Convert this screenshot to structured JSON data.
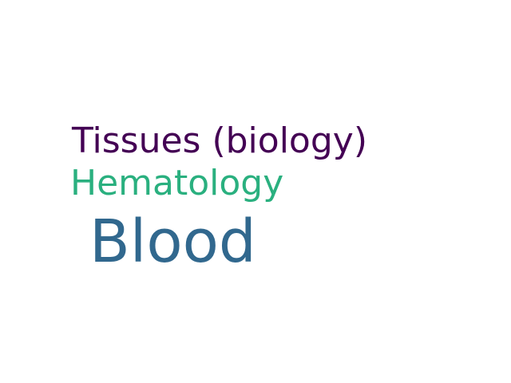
{
  "words": [
    {
      "text": "Tissues (biology)",
      "color": "#440154"
    },
    {
      "text": "Hematology",
      "color": "#2ab07f"
    },
    {
      "text": "Blood",
      "color": "#31688e"
    }
  ]
}
